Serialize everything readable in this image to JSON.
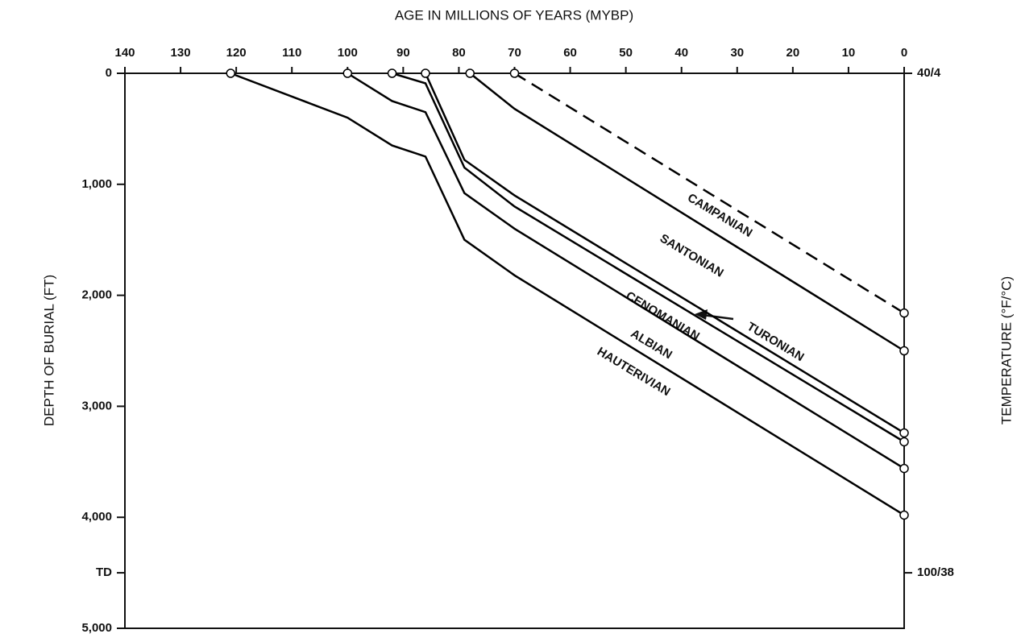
{
  "chart_data": {
    "type": "line",
    "x_title": "AGE IN MILLIONS OF YEARS (MYBP)",
    "y_title": "DEPTH OF BURIAL (FT)",
    "y2_title": "TEMPERATURE (°F/°C)",
    "xlim": [
      140,
      0
    ],
    "xticks": [
      140,
      130,
      120,
      110,
      100,
      90,
      80,
      70,
      60,
      50,
      40,
      30,
      20,
      10,
      0
    ],
    "ylim": [
      0,
      5000
    ],
    "y_reversed": true,
    "yticks": [
      0,
      {
        "value": 1000,
        "label": "1,000"
      },
      {
        "value": 2000,
        "label": "2,000"
      },
      {
        "value": 3000,
        "label": "3,000"
      },
      {
        "value": 4000,
        "label": "4,000"
      },
      {
        "value": 4500,
        "label": "TD"
      },
      {
        "value": 5000,
        "label": "5,000"
      }
    ],
    "y2lim": [
      0,
      5000
    ],
    "y2ticks": [
      {
        "value": 0,
        "label": "40/4"
      },
      {
        "value": 4500,
        "label": "100/38"
      }
    ],
    "series": [
      {
        "name": "CAMPANIAN",
        "color": "#000000",
        "dashed": true,
        "x": [
          70,
          0
        ],
        "values": [
          0,
          2160
        ]
      },
      {
        "name": "SANTONIAN",
        "color": "#000000",
        "dashed": false,
        "x": [
          78,
          70,
          0
        ],
        "values": [
          0,
          320,
          2500
        ]
      },
      {
        "name": "TURONIAN",
        "color": "#000000",
        "dashed": false,
        "x": [
          86,
          79,
          70,
          0
        ],
        "values": [
          0,
          780,
          1100,
          3240
        ]
      },
      {
        "name": "CENOMANIAN",
        "color": "#000000",
        "dashed": false,
        "x": [
          92,
          86,
          79,
          70,
          0
        ],
        "values": [
          0,
          90,
          850,
          1200,
          3320
        ]
      },
      {
        "name": "ALBIAN",
        "color": "#000000",
        "dashed": false,
        "x": [
          100,
          92,
          86,
          79,
          70,
          0
        ],
        "values": [
          0,
          250,
          350,
          1080,
          1400,
          3560
        ]
      },
      {
        "name": "HAUTERIVIAN",
        "color": "#000000",
        "dashed": false,
        "x": [
          121,
          100,
          92,
          86,
          79,
          70,
          0
        ],
        "values": [
          0,
          400,
          650,
          750,
          1500,
          1820,
          3980
        ]
      }
    ]
  }
}
